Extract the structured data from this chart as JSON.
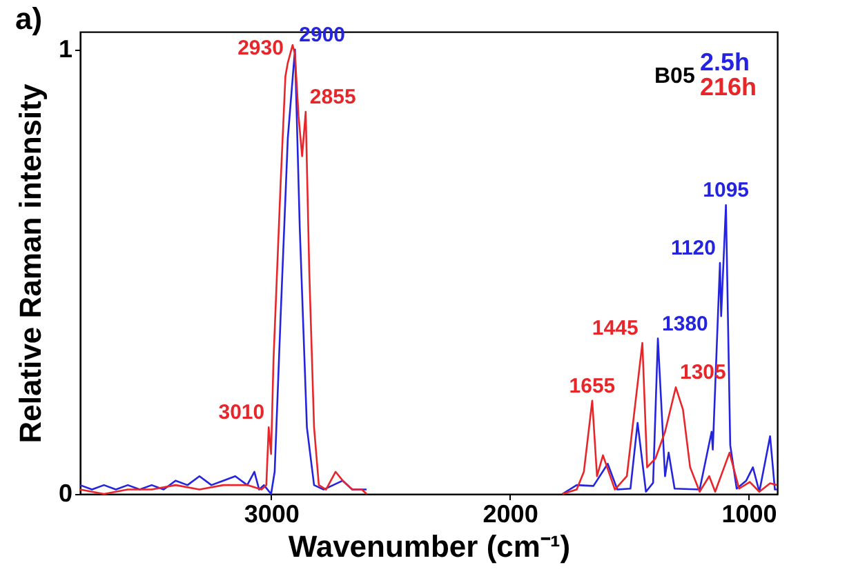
{
  "chart_data": {
    "type": "line",
    "title": "a)",
    "xlabel": "Wavenumber (cm⁻¹)",
    "ylabel": "Relative Raman intensity",
    "legend_title": "B05",
    "legend": "top right",
    "xlim": [
      3800,
      880
    ],
    "ylim": [
      0,
      1.04
    ],
    "xticks": [
      3000,
      2000,
      1000
    ],
    "yticks": [
      0,
      1
    ],
    "grid": false,
    "marker": "none",
    "line_style": "solid",
    "series": [
      {
        "name": "2.5h",
        "color": "#2424e0",
        "x": [
          3800,
          3750,
          3700,
          3650,
          3600,
          3550,
          3500,
          3450,
          3400,
          3350,
          3300,
          3250,
          3200,
          3150,
          3100,
          3070,
          3050,
          3030,
          3000,
          2985,
          2960,
          2930,
          2900,
          2880,
          2850,
          2820,
          2780,
          2740,
          2700,
          2660,
          2600,
          2200,
          1780,
          1720,
          1650,
          1590,
          1550,
          1495,
          1465,
          1430,
          1400,
          1380,
          1350,
          1335,
          1310,
          1205,
          1155,
          1150,
          1120,
          1115,
          1095,
          1077,
          1050,
          1010,
          982,
          955,
          910,
          890,
          880
        ],
        "values": [
          0.02,
          0.01,
          0.02,
          0.01,
          0.02,
          0.01,
          0.02,
          0.01,
          0.03,
          0.02,
          0.04,
          0.02,
          0.03,
          0.04,
          0.02,
          0.05,
          0.01,
          0.02,
          0.0,
          0.05,
          0.4,
          0.8,
          1.0,
          0.6,
          0.15,
          0.02,
          0.01,
          0.02,
          0.03,
          0.01,
          0.01,
          null,
          0.0,
          0.02,
          0.018,
          0.068,
          0.01,
          0.012,
          0.16,
          0.005,
          0.025,
          0.35,
          0.04,
          0.093,
          0.012,
          0.01,
          0.14,
          0.1,
          0.52,
          0.4,
          0.65,
          0.11,
          0.012,
          0.03,
          0.06,
          0.005,
          0.13,
          0.01,
          0.01
        ]
      },
      {
        "name": "216h",
        "color": "#e8262a",
        "x": [
          3800,
          3700,
          3600,
          3500,
          3400,
          3300,
          3200,
          3100,
          3040,
          3020,
          3010,
          3000,
          2990,
          2960,
          2940,
          2930,
          2910,
          2900,
          2885,
          2870,
          2855,
          2840,
          2820,
          2800,
          2770,
          2730,
          2700,
          2660,
          2620,
          2600,
          2200,
          1780,
          1720,
          1690,
          1655,
          1635,
          1610,
          1560,
          1510,
          1445,
          1425,
          1390,
          1350,
          1305,
          1275,
          1245,
          1205,
          1165,
          1140,
          1080,
          1040,
          995,
          955,
          910,
          880
        ],
        "values": [
          0.01,
          0.0,
          0.01,
          0.01,
          0.02,
          0.01,
          0.02,
          0.02,
          0.01,
          0.02,
          0.15,
          0.09,
          0.3,
          0.7,
          0.94,
          0.97,
          1.01,
          0.99,
          0.85,
          0.76,
          0.86,
          0.5,
          0.15,
          0.02,
          0.01,
          0.05,
          0.03,
          0.01,
          0.01,
          0.0,
          null,
          0.0,
          0.01,
          0.05,
          0.21,
          0.04,
          0.087,
          0.01,
          0.04,
          0.34,
          0.06,
          0.08,
          0.14,
          0.24,
          0.19,
          0.06,
          0.005,
          0.04,
          0.005,
          0.093,
          0.012,
          0.027,
          0.005,
          0.024,
          0.02
        ]
      }
    ],
    "annotations": [
      {
        "text": "2930",
        "x": 2930,
        "y": 0.97
      },
      {
        "text": "2900",
        "x": 2900,
        "y": 1.0
      },
      {
        "text": "2855",
        "x": 2855,
        "y": 0.86
      },
      {
        "text": "3010",
        "x": 3010,
        "y": 0.15
      },
      {
        "text": "1655",
        "x": 1655,
        "y": 0.21
      },
      {
        "text": "1445",
        "x": 1445,
        "y": 0.34
      },
      {
        "text": "1380",
        "x": 1380,
        "y": 0.35
      },
      {
        "text": "1305",
        "x": 1305,
        "y": 0.24
      },
      {
        "text": "1120",
        "x": 1120,
        "y": 0.52
      },
      {
        "text": "1095",
        "x": 1095,
        "y": 0.65
      }
    ]
  }
}
